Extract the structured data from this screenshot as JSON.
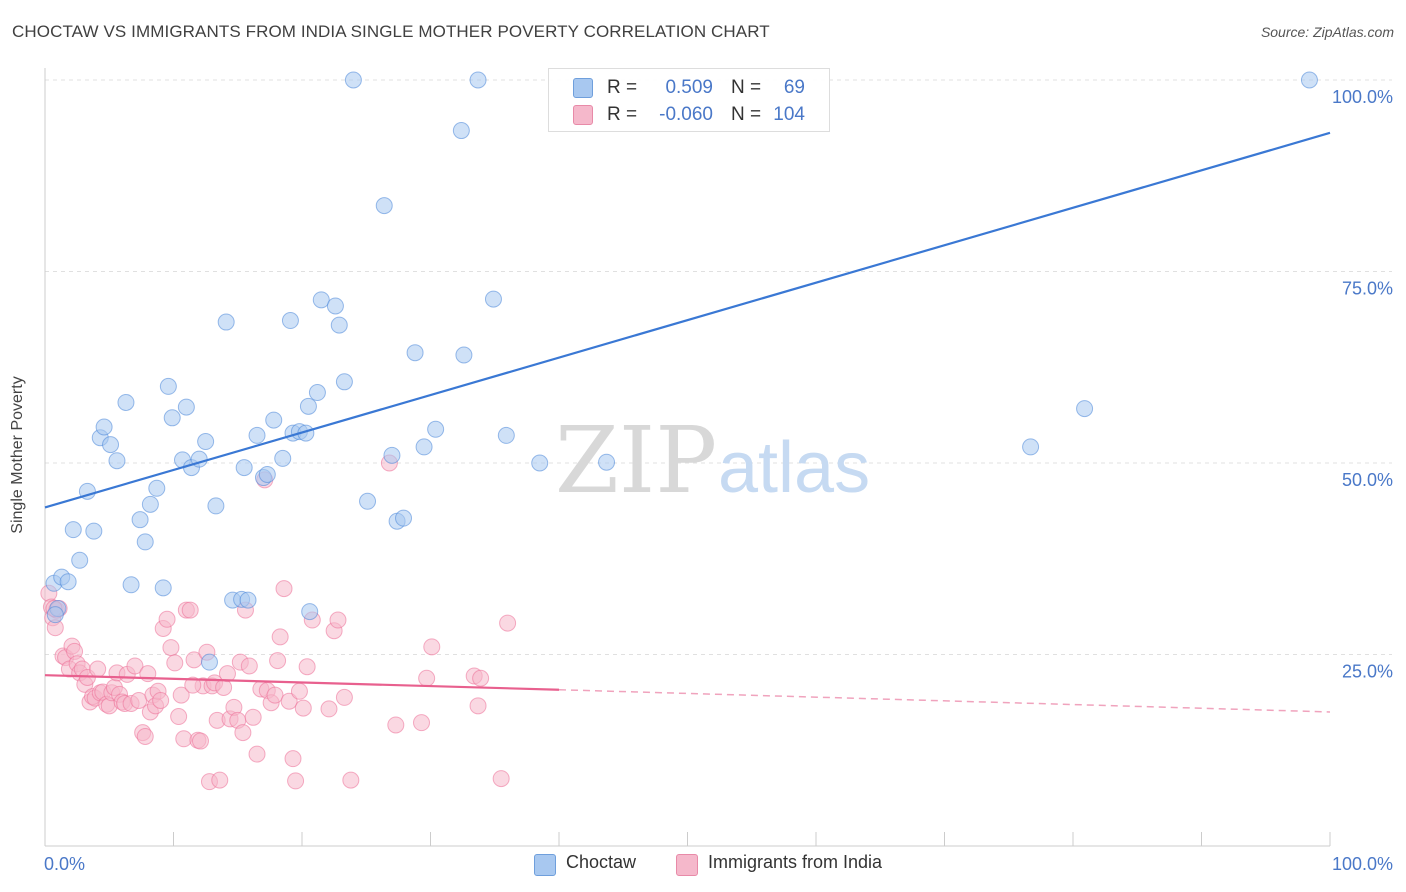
{
  "header": {
    "title": "CHOCTAW VS IMMIGRANTS FROM INDIA SINGLE MOTHER POVERTY CORRELATION CHART",
    "source": "Source: ZipAtlas.com"
  },
  "watermark": {
    "zip": "ZIP",
    "atlas": "atlas"
  },
  "legend_top": {
    "rows": [
      {
        "r_label": "R =",
        "r_value": "0.509",
        "n_label": "N =",
        "n_value": "69",
        "color": "#a8c8f0"
      },
      {
        "r_label": "R =",
        "r_value": "-0.060",
        "n_label": "N =",
        "n_value": "104",
        "color": "#f5b8cb"
      }
    ]
  },
  "legend_bottom": {
    "items": [
      {
        "label": "Choctaw",
        "color": "#a8c8f0"
      },
      {
        "label": "Immigrants from India",
        "color": "#f5b8cb"
      }
    ]
  },
  "chart_data": {
    "type": "scatter",
    "title": "CHOCTAW VS IMMIGRANTS FROM INDIA SINGLE MOTHER POVERTY CORRELATION CHART",
    "xlabel": "",
    "ylabel": "Single Mother Poverty",
    "xlim": [
      0,
      100
    ],
    "ylim": [
      0,
      100
    ],
    "x_tick_labels": [
      "0.0%",
      "100.0%"
    ],
    "y_ticks": [
      25,
      50,
      75,
      100
    ],
    "y_tick_labels": [
      "25.0%",
      "50.0%",
      "75.0%",
      "100.0%"
    ],
    "grid": "horizontal dashed",
    "legend_position": "top-center",
    "colors": {
      "choctaw": "#4a86d8",
      "choctaw_fill": "#a8c8f0",
      "india": "#ec6f98",
      "india_fill": "#f5b8cb"
    },
    "series": [
      {
        "name": "Choctaw",
        "r": 0.509,
        "n": 69,
        "trend": {
          "x": [
            0,
            100
          ],
          "y": [
            44.2,
            93.1
          ],
          "style": "solid"
        },
        "points": [
          [
            1.0,
            31.0
          ],
          [
            0.7,
            34.3
          ],
          [
            1.3,
            35.1
          ],
          [
            1.8,
            34.5
          ],
          [
            2.2,
            41.3
          ],
          [
            2.7,
            37.3
          ],
          [
            3.3,
            46.3
          ],
          [
            3.8,
            41.1
          ],
          [
            4.3,
            53.3
          ],
          [
            4.6,
            54.7
          ],
          [
            5.1,
            52.4
          ],
          [
            5.6,
            50.3
          ],
          [
            6.3,
            57.9
          ],
          [
            6.7,
            34.1
          ],
          [
            7.4,
            42.6
          ],
          [
            7.8,
            39.7
          ],
          [
            8.2,
            44.6
          ],
          [
            8.7,
            46.7
          ],
          [
            9.2,
            33.7
          ],
          [
            9.6,
            60.0
          ],
          [
            9.9,
            55.9
          ],
          [
            10.7,
            50.4
          ],
          [
            11.0,
            57.3
          ],
          [
            11.4,
            49.4
          ],
          [
            12.0,
            50.5
          ],
          [
            12.5,
            52.8
          ],
          [
            12.8,
            24.0
          ],
          [
            13.3,
            44.4
          ],
          [
            14.1,
            68.4
          ],
          [
            14.6,
            32.1
          ],
          [
            15.3,
            32.2
          ],
          [
            15.8,
            32.1
          ],
          [
            15.5,
            49.4
          ],
          [
            16.5,
            53.6
          ],
          [
            17.0,
            48.1
          ],
          [
            17.3,
            48.5
          ],
          [
            17.8,
            55.6
          ],
          [
            18.5,
            50.6
          ],
          [
            19.1,
            68.6
          ],
          [
            19.3,
            53.9
          ],
          [
            19.8,
            54.1
          ],
          [
            20.3,
            53.9
          ],
          [
            20.5,
            57.4
          ],
          [
            21.2,
            59.2
          ],
          [
            21.5,
            71.3
          ],
          [
            22.6,
            70.5
          ],
          [
            22.9,
            68.0
          ],
          [
            23.3,
            60.6
          ],
          [
            24.0,
            100.0
          ],
          [
            25.1,
            45.0
          ],
          [
            26.4,
            83.6
          ],
          [
            27.0,
            51.0
          ],
          [
            27.4,
            42.4
          ],
          [
            27.9,
            42.8
          ],
          [
            28.8,
            64.4
          ],
          [
            29.5,
            52.1
          ],
          [
            30.4,
            54.4
          ],
          [
            32.4,
            93.4
          ],
          [
            32.6,
            64.1
          ],
          [
            33.7,
            100.0
          ],
          [
            34.9,
            71.4
          ],
          [
            35.9,
            53.6
          ],
          [
            38.5,
            50.0
          ],
          [
            43.7,
            50.1
          ],
          [
            76.7,
            52.1
          ],
          [
            80.9,
            57.1
          ],
          [
            98.4,
            100.0
          ],
          [
            20.6,
            30.6
          ],
          [
            0.8,
            30.2
          ]
        ]
      },
      {
        "name": "Immigrants from India",
        "r": -0.06,
        "n": 104,
        "trend": {
          "x": [
            0,
            40,
            100
          ],
          "y": [
            22.3,
            20.4,
            17.5
          ],
          "style": "solid to 40 then dashed"
        },
        "points": [
          [
            0.3,
            33.0
          ],
          [
            0.5,
            31.2
          ],
          [
            0.6,
            29.8
          ],
          [
            0.8,
            28.5
          ],
          [
            0.9,
            30.8
          ],
          [
            1.1,
            31.0
          ],
          [
            1.4,
            24.8
          ],
          [
            1.6,
            24.6
          ],
          [
            1.9,
            23.1
          ],
          [
            2.1,
            26.1
          ],
          [
            2.3,
            25.4
          ],
          [
            2.5,
            23.8
          ],
          [
            2.7,
            22.6
          ],
          [
            2.9,
            23.1
          ],
          [
            3.1,
            21.1
          ],
          [
            3.3,
            22.0
          ],
          [
            3.5,
            18.8
          ],
          [
            3.7,
            19.5
          ],
          [
            3.9,
            19.3
          ],
          [
            4.1,
            23.1
          ],
          [
            4.3,
            20.0
          ],
          [
            4.5,
            20.1
          ],
          [
            4.8,
            18.5
          ],
          [
            5.0,
            18.3
          ],
          [
            5.2,
            20.0
          ],
          [
            5.4,
            20.7
          ],
          [
            5.6,
            22.6
          ],
          [
            5.8,
            19.8
          ],
          [
            6.0,
            18.8
          ],
          [
            6.2,
            18.6
          ],
          [
            6.4,
            22.4
          ],
          [
            6.7,
            18.6
          ],
          [
            7.0,
            23.5
          ],
          [
            7.3,
            19.0
          ],
          [
            7.6,
            14.8
          ],
          [
            7.8,
            14.3
          ],
          [
            8.0,
            22.5
          ],
          [
            8.2,
            17.5
          ],
          [
            8.4,
            19.7
          ],
          [
            8.6,
            18.3
          ],
          [
            8.8,
            20.2
          ],
          [
            9.0,
            19.0
          ],
          [
            9.2,
            28.4
          ],
          [
            9.5,
            29.6
          ],
          [
            9.8,
            25.9
          ],
          [
            10.1,
            23.9
          ],
          [
            10.4,
            16.9
          ],
          [
            10.6,
            19.7
          ],
          [
            10.8,
            14.0
          ],
          [
            11.0,
            30.8
          ],
          [
            11.3,
            30.8
          ],
          [
            11.6,
            24.3
          ],
          [
            11.9,
            13.8
          ],
          [
            12.1,
            13.7
          ],
          [
            12.3,
            20.9
          ],
          [
            12.6,
            25.3
          ],
          [
            12.8,
            8.4
          ],
          [
            13.0,
            20.9
          ],
          [
            13.2,
            21.3
          ],
          [
            13.4,
            16.4
          ],
          [
            13.6,
            8.6
          ],
          [
            13.9,
            20.7
          ],
          [
            14.2,
            22.5
          ],
          [
            14.4,
            16.6
          ],
          [
            14.7,
            18.1
          ],
          [
            15.0,
            16.4
          ],
          [
            15.2,
            24.0
          ],
          [
            15.4,
            14.8
          ],
          [
            15.6,
            30.8
          ],
          [
            15.9,
            23.5
          ],
          [
            16.2,
            16.8
          ],
          [
            16.5,
            12.0
          ],
          [
            16.8,
            20.5
          ],
          [
            17.1,
            47.8
          ],
          [
            17.3,
            20.3
          ],
          [
            17.6,
            18.7
          ],
          [
            17.9,
            19.7
          ],
          [
            18.1,
            24.2
          ],
          [
            18.3,
            27.3
          ],
          [
            18.6,
            33.6
          ],
          [
            19.0,
            18.9
          ],
          [
            19.3,
            11.4
          ],
          [
            19.5,
            8.5
          ],
          [
            19.8,
            20.2
          ],
          [
            20.1,
            18.0
          ],
          [
            20.4,
            23.4
          ],
          [
            20.8,
            29.5
          ],
          [
            22.1,
            17.9
          ],
          [
            22.5,
            28.1
          ],
          [
            22.8,
            29.5
          ],
          [
            23.3,
            19.4
          ],
          [
            23.8,
            8.6
          ],
          [
            26.8,
            50.0
          ],
          [
            27.3,
            15.8
          ],
          [
            29.3,
            16.1
          ],
          [
            29.7,
            21.9
          ],
          [
            30.1,
            26.0
          ],
          [
            33.4,
            22.2
          ],
          [
            33.7,
            18.3
          ],
          [
            33.9,
            21.9
          ],
          [
            35.5,
            8.8
          ],
          [
            36.0,
            29.1
          ],
          [
            0.7,
            31.0
          ],
          [
            11.5,
            21.0
          ]
        ]
      }
    ]
  }
}
